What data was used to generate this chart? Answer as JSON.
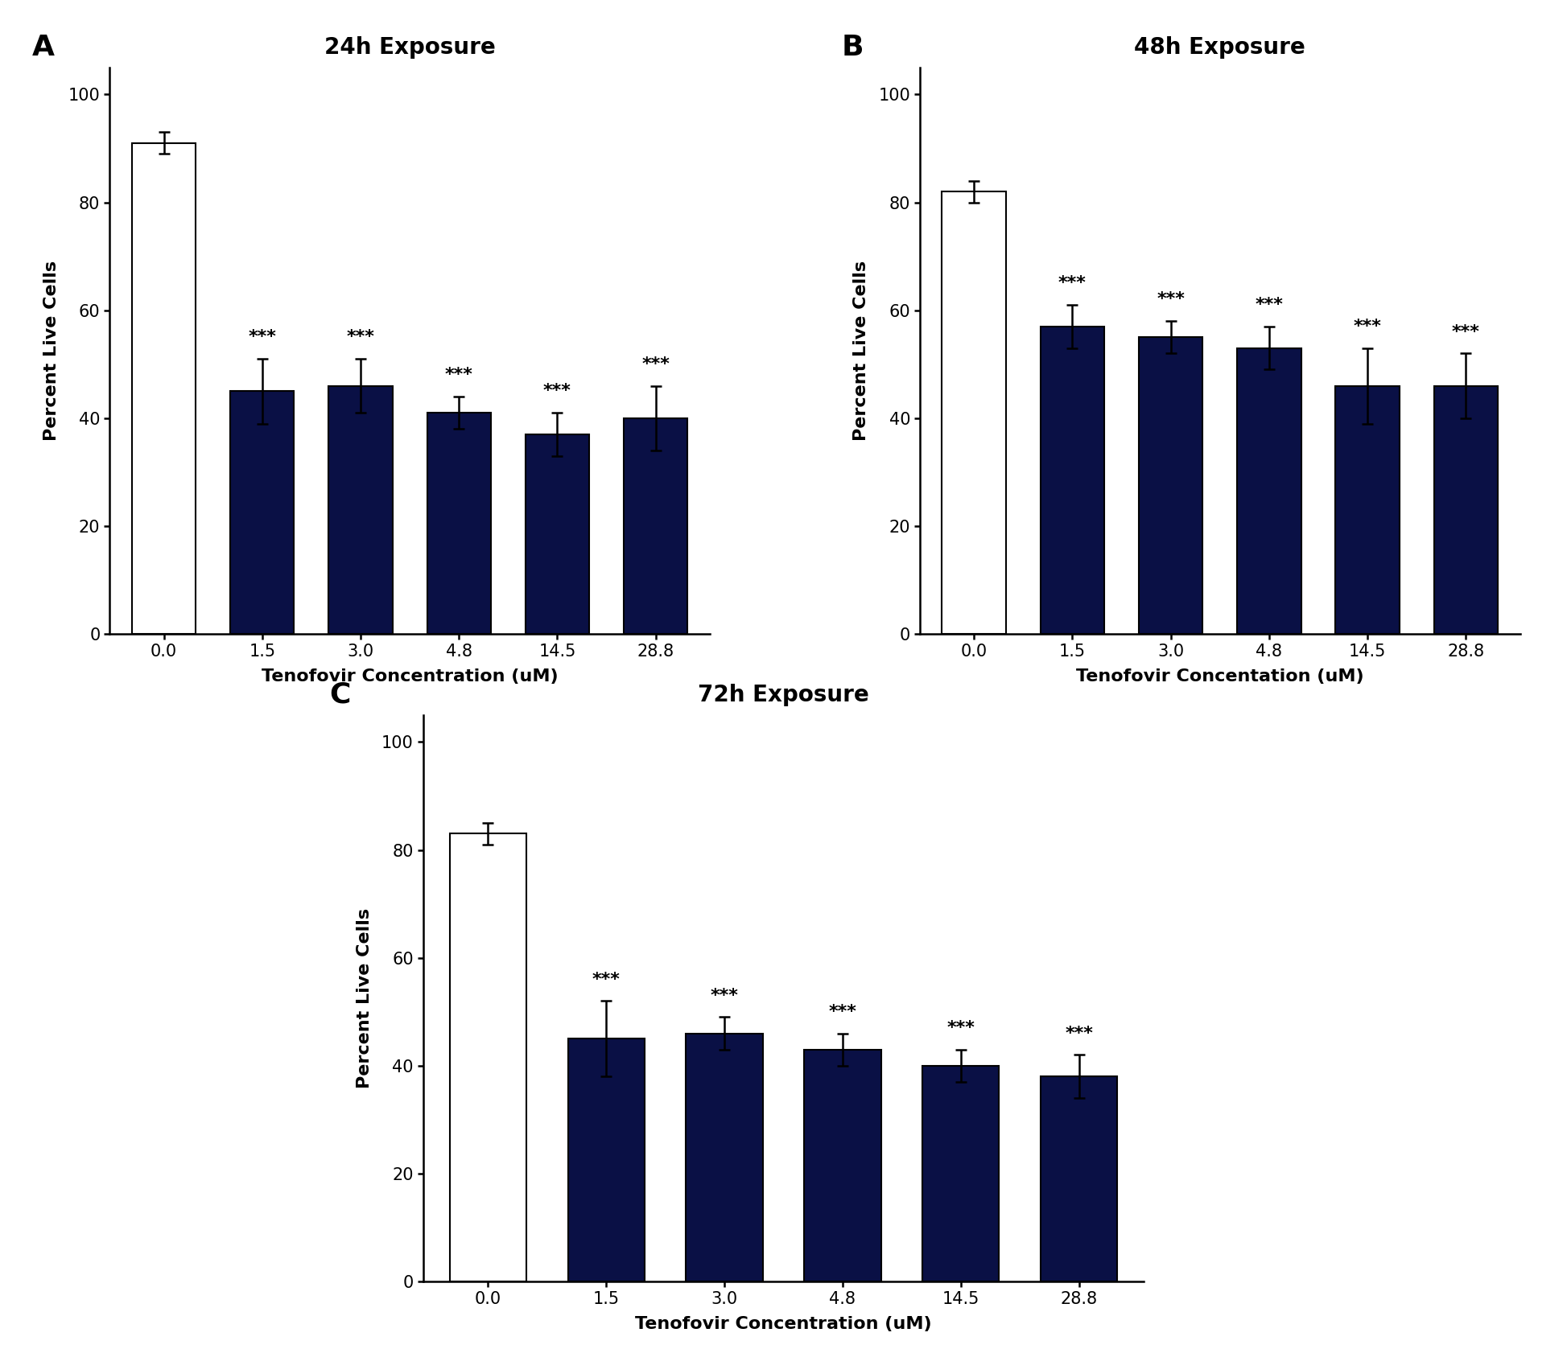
{
  "panels": [
    {
      "label": "A",
      "title": "24h Exposure",
      "xlabel": "Tenofovir Concentration (uM)",
      "ylabel": "Percent Live Cells",
      "categories": [
        "0.0",
        "1.5",
        "3.0",
        "4.8",
        "14.5",
        "28.8"
      ],
      "values": [
        91,
        45,
        46,
        41,
        37,
        40
      ],
      "errors": [
        2,
        6,
        5,
        3,
        4,
        6
      ],
      "bar_colors": [
        "#ffffff",
        "#0a1045",
        "#0a1045",
        "#0a1045",
        "#0a1045",
        "#0a1045"
      ],
      "bar_edgecolors": [
        "#000000",
        "#000000",
        "#000000",
        "#000000",
        "#000000",
        "#000000"
      ],
      "sig_labels": [
        "",
        "***",
        "***",
        "***",
        "***",
        "***"
      ],
      "ylim": [
        0,
        105
      ],
      "yticks": [
        0,
        20,
        40,
        60,
        80,
        100
      ]
    },
    {
      "label": "B",
      "title": "48h Exposure",
      "xlabel": "Tenofovir Concentation (uM)",
      "ylabel": "Percent Live Cells",
      "categories": [
        "0.0",
        "1.5",
        "3.0",
        "4.8",
        "14.5",
        "28.8"
      ],
      "values": [
        82,
        57,
        55,
        53,
        46,
        46
      ],
      "errors": [
        2,
        4,
        3,
        4,
        7,
        6
      ],
      "bar_colors": [
        "#ffffff",
        "#0a1045",
        "#0a1045",
        "#0a1045",
        "#0a1045",
        "#0a1045"
      ],
      "bar_edgecolors": [
        "#000000",
        "#000000",
        "#000000",
        "#000000",
        "#000000",
        "#000000"
      ],
      "sig_labels": [
        "",
        "***",
        "***",
        "***",
        "***",
        "***"
      ],
      "ylim": [
        0,
        105
      ],
      "yticks": [
        0,
        20,
        40,
        60,
        80,
        100
      ]
    },
    {
      "label": "C",
      "title": "72h Exposure",
      "xlabel": "Tenofovir Concentration (uM)",
      "ylabel": "Percent Live Cells",
      "categories": [
        "0.0",
        "1.5",
        "3.0",
        "4.8",
        "14.5",
        "28.8"
      ],
      "values": [
        83,
        45,
        46,
        43,
        40,
        38
      ],
      "errors": [
        2,
        7,
        3,
        3,
        3,
        4
      ],
      "bar_colors": [
        "#ffffff",
        "#0a1045",
        "#0a1045",
        "#0a1045",
        "#0a1045",
        "#0a1045"
      ],
      "bar_edgecolors": [
        "#000000",
        "#000000",
        "#000000",
        "#000000",
        "#000000",
        "#000000"
      ],
      "sig_labels": [
        "",
        "***",
        "***",
        "***",
        "***",
        "***"
      ],
      "ylim": [
        0,
        105
      ],
      "yticks": [
        0,
        20,
        40,
        60,
        80,
        100
      ]
    }
  ],
  "background_color": "#ffffff",
  "bar_width": 0.65,
  "title_fontsize": 20,
  "label_fontsize": 16,
  "tick_fontsize": 15,
  "sig_fontsize": 16,
  "panel_label_fontsize": 26
}
